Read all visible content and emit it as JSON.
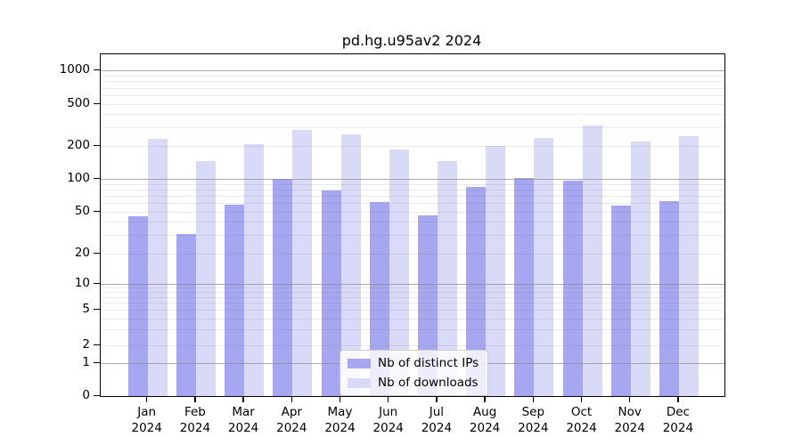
{
  "chart_data": {
    "type": "bar",
    "title": "pd.hg.u95av2 2024",
    "x": [
      "Jan",
      "Feb",
      "Mar",
      "Apr",
      "May",
      "Jun",
      "Jul",
      "Aug",
      "Sep",
      "Oct",
      "Nov",
      "Dec"
    ],
    "year": "2024",
    "series": [
      {
        "name": "Nb of distinct IPs",
        "color": "#a6a6f1",
        "values": [
          45,
          31,
          58,
          100,
          78,
          62,
          46,
          84,
          102,
          96,
          57,
          63
        ]
      },
      {
        "name": "Nb of downloads",
        "color": "#d9d9f8",
        "values": [
          235,
          145,
          207,
          285,
          260,
          185,
          146,
          200,
          240,
          315,
          220,
          248
        ]
      }
    ],
    "yticks": [
      0,
      1,
      2,
      5,
      10,
      20,
      50,
      100,
      200,
      500,
      1000
    ],
    "ylabel": "",
    "xlabel": "",
    "ylim": [
      0,
      1500
    ],
    "scale": "log-like (asinh), linear near 0",
    "grid": true,
    "legend_position": "bottom-center-inside"
  },
  "colors": {
    "background": "#ffffff",
    "axis": "#000000",
    "major_grid": "#8c8c8c",
    "minor_grid": "#e3e3e3",
    "legend_border": "#cccccc"
  }
}
